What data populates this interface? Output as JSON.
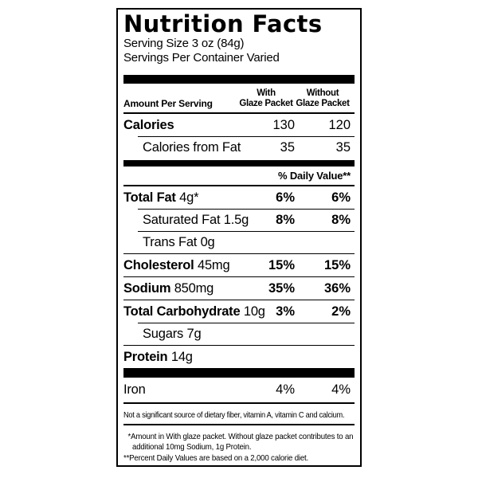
{
  "label": {
    "title": "Nutrition Facts",
    "serving_size": "Serving Size 3 oz (84g)",
    "servings_per_container": "Servings Per Container Varied",
    "column_headers": {
      "amount": "Amount Per Serving",
      "with": [
        "With",
        "Glaze Packet"
      ],
      "without": [
        "Without",
        "Glaze Packet"
      ]
    },
    "daily_value_heading": "% Daily Value**",
    "calorie_rows": [
      {
        "name": "Calories",
        "amount": "",
        "col1": "130",
        "col2": "120",
        "indent": false,
        "bold_values": false,
        "divider": "none"
      },
      {
        "name": "",
        "amount": "Calories from Fat",
        "col1": "35",
        "col2": "35",
        "indent": true,
        "bold_values": false,
        "divider": "inset"
      }
    ],
    "nutrient_rows": [
      {
        "name": "Total Fat",
        "amount": "4g*",
        "col1": "6%",
        "col2": "6%",
        "indent": false,
        "bold_values": true,
        "divider": "none"
      },
      {
        "name": "",
        "amount": "Saturated Fat 1.5g",
        "col1": "8%",
        "col2": "8%",
        "indent": true,
        "bold_values": true,
        "divider": "inset"
      },
      {
        "name": "",
        "amount": "Trans Fat 0g",
        "col1": "",
        "col2": "",
        "indent": true,
        "bold_values": false,
        "divider": "inset"
      },
      {
        "name": "Cholesterol",
        "amount": "45mg",
        "col1": "15%",
        "col2": "15%",
        "indent": false,
        "bold_values": true,
        "divider": "full"
      },
      {
        "name": "Sodium",
        "amount": "850mg",
        "col1": "35%",
        "col2": "36%",
        "indent": false,
        "bold_values": true,
        "divider": "full"
      },
      {
        "name": "Total Carbohydrate",
        "amount": "10g",
        "col1": "3%",
        "col2": "2%",
        "indent": false,
        "bold_values": true,
        "divider": "full"
      },
      {
        "name": "",
        "amount": "Sugars 7g",
        "col1": "",
        "col2": "",
        "indent": true,
        "bold_values": false,
        "divider": "inset"
      },
      {
        "name": "Protein",
        "amount": "14g",
        "col1": "",
        "col2": "",
        "indent": false,
        "bold_values": false,
        "divider": "full"
      }
    ],
    "mineral_rows": [
      {
        "name": "",
        "amount": "Iron",
        "col1": "4%",
        "col2": "4%",
        "indent": false,
        "bold_values": false,
        "divider": "none"
      }
    ],
    "not_significant": "Not a significant source of dietary fiber, vitamin A, vitamin C and calcium.",
    "footnotes": [
      {
        "lines": [
          "*Amount in With glaze packet. Without glaze packet contributes to an",
          "additional 10mg Sodium, 1g Protein."
        ]
      },
      {
        "lines": [
          "**Percent Daily Values are based on a 2,000 calorie diet."
        ]
      }
    ]
  }
}
